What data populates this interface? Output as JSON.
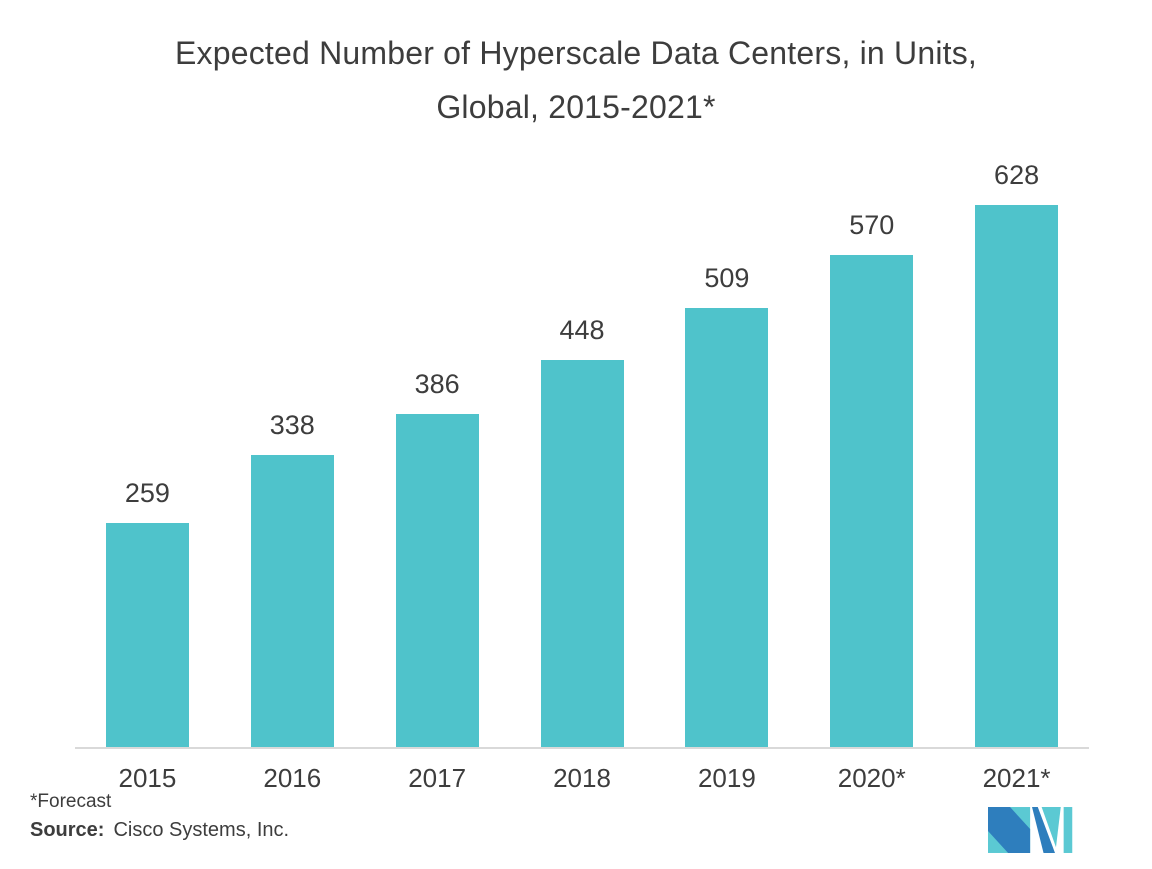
{
  "title": {
    "line1": "Expected Number of Hyperscale Data Centers, in Units,",
    "line2": "Global, 2015-2021*"
  },
  "chart_data": {
    "type": "bar",
    "title": "Expected Number of Hyperscale Data Centers, in Units, Global, 2015-2021*",
    "title_lines": [
      "Expected Number of Hyperscale Data Centers, in Units,",
      "Global, 2015-2021*"
    ],
    "categories": [
      "2015",
      "2016",
      "2017",
      "2018",
      "2019",
      "2020*",
      "2021*"
    ],
    "values": [
      259,
      338,
      386,
      448,
      509,
      570,
      628
    ],
    "xlabel": "",
    "ylabel": "",
    "ylim": [
      0,
      692
    ],
    "grid": "off",
    "legend": "none",
    "data_labels_shown": true,
    "bar_color": "#4FC3CB",
    "axis_line_color": "#D9D9D9",
    "text_color": "#3D3D3D"
  },
  "footer": {
    "forecast_note": "*Forecast",
    "source_label": "Source:",
    "source_text": "Cisco Systems, Inc."
  },
  "logo": {
    "name": "mordor-intelligence-logo",
    "teal": "#5BC9D3",
    "blue": "#2E7EBD"
  },
  "colors": {
    "background": "#FFFFFF"
  }
}
